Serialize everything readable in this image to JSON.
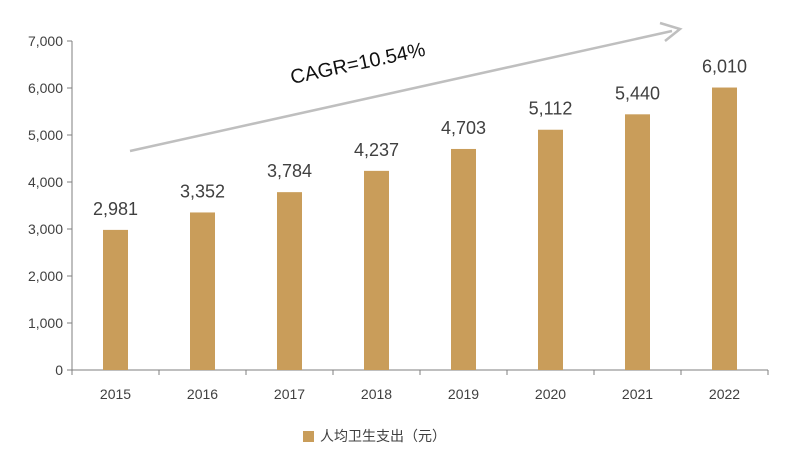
{
  "chart_data": {
    "type": "bar",
    "categories": [
      "2015",
      "2016",
      "2017",
      "2018",
      "2019",
      "2020",
      "2021",
      "2022"
    ],
    "values": [
      2981,
      3352,
      3784,
      4237,
      4703,
      5112,
      5440,
      6010
    ],
    "data_labels": [
      "2,981",
      "3,352",
      "3,784",
      "4,237",
      "4,703",
      "5,112",
      "5,440",
      "6,010"
    ],
    "ylim": [
      0,
      7000
    ],
    "yticks": [
      0,
      1000,
      2000,
      3000,
      4000,
      5000,
      6000,
      7000
    ],
    "ytick_labels": [
      "0",
      "1,000",
      "2,000",
      "3,000",
      "4,000",
      "5,000",
      "6,000",
      "7,000"
    ],
    "grid": false,
    "legend_position": "bottom",
    "series": [
      {
        "name": "人均卫生支出（元）",
        "color": "#C99D5A"
      }
    ],
    "annotation": "CAGR=10.54%"
  }
}
